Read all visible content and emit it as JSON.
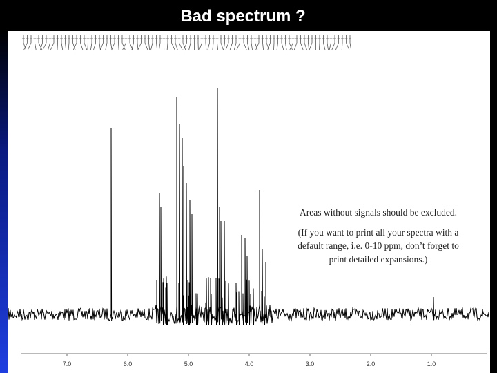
{
  "header": {
    "title": "Bad spectrum ?"
  },
  "annotation": {
    "lines": [
      "Areas without signals should be excluded.",
      "(If you want to print all your spectra with a",
      "default range, i.e. 0-10 ppm, don’t forget to",
      "print detailed expansions.)"
    ]
  },
  "axis": {
    "labels": [
      "7.0",
      "6.0",
      "5.0",
      "4.0",
      "3.0",
      "2.0",
      "1.0"
    ]
  }
}
